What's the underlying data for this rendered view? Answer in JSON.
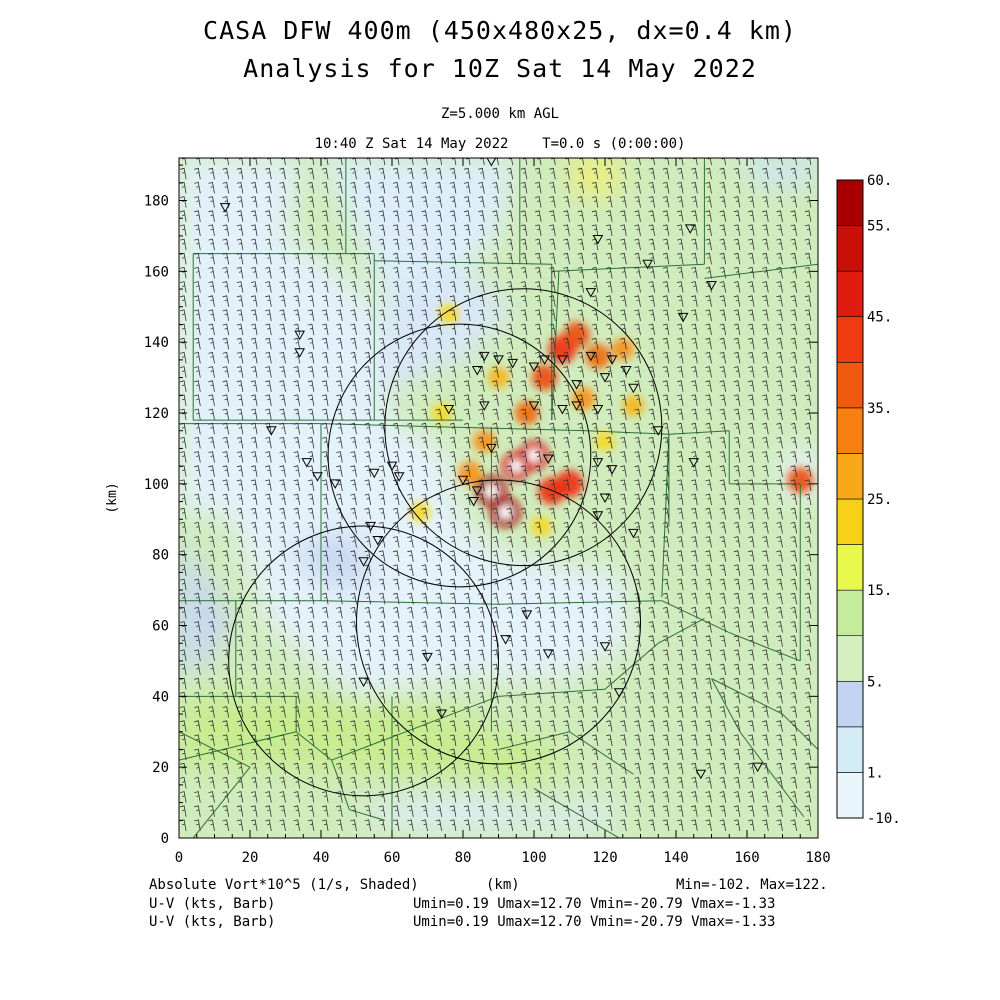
{
  "title": {
    "line1": "CASA DFW 400m (450x480x25, dx=0.4 km)",
    "line2": "Analysis for 10Z Sat 14 May 2022"
  },
  "subtitle": {
    "level": "Z=5.000 km AGL",
    "time": "10:40 Z Sat 14 May 2022    T=0.0 s (0:00:00)"
  },
  "footer": {
    "field_label": "Absolute Vort*10^5 (1/s, Shaded)",
    "xunit": "(km)",
    "minmax": "Min=-102. Max=122.",
    "vector1_label": "U-V (kts, Barb)",
    "vector2_label": "U-V (kts, Barb)",
    "vector1_stats": "Umin=0.19 Umax=12.70 Vmin=-20.79 Vmax=-1.33",
    "vector2_stats": "Umin=0.19 Umax=12.70 Vmin=-20.79 Vmax=-1.33"
  },
  "chart_data": {
    "type": "heatmap",
    "xlabel": "",
    "ylabel": "(km)",
    "xlim": [
      0,
      180
    ],
    "ylim": [
      0,
      192
    ],
    "xticks": [
      "0",
      "20",
      "40",
      "60",
      "80",
      "100",
      "120",
      "140",
      "160",
      "180"
    ],
    "yticks": [
      "0",
      "20",
      "40",
      "60",
      "80",
      "100",
      "120",
      "140",
      "160",
      "180"
    ],
    "colorbar": {
      "labels": [
        "60.",
        "55.",
        "45.",
        "35.",
        "25.",
        "15.",
        "5.",
        "1.",
        "-10."
      ],
      "colors": [
        "#e8f6fb",
        "#d4ecf8",
        "#c2d4f0",
        "#d4f0c0",
        "#c4ec9c",
        "#e8f84c",
        "#f8d018",
        "#f8a818",
        "#f88010",
        "#f05a10",
        "#f03a10",
        "#e01c10",
        "#c81008",
        "#a80000"
      ]
    },
    "radar_rings": [
      {
        "cx": 97,
        "cy": 116,
        "r": 39
      },
      {
        "cx": 79,
        "cy": 108,
        "r": 37
      },
      {
        "cx": 52,
        "cy": 50,
        "r": 38
      },
      {
        "cx": 90,
        "cy": 61,
        "r": 40
      }
    ],
    "reflectivity_cells": [
      {
        "x": 88,
        "y": 98,
        "v": 58
      },
      {
        "x": 92,
        "y": 92,
        "v": 56
      },
      {
        "x": 95,
        "y": 105,
        "v": 50
      },
      {
        "x": 100,
        "y": 108,
        "v": 52
      },
      {
        "x": 105,
        "y": 98,
        "v": 45
      },
      {
        "x": 110,
        "y": 100,
        "v": 46
      },
      {
        "x": 108,
        "y": 138,
        "v": 48
      },
      {
        "x": 112,
        "y": 142,
        "v": 42
      },
      {
        "x": 103,
        "y": 130,
        "v": 40
      },
      {
        "x": 118,
        "y": 136,
        "v": 38
      },
      {
        "x": 98,
        "y": 120,
        "v": 36
      },
      {
        "x": 82,
        "y": 103,
        "v": 34
      },
      {
        "x": 86,
        "y": 112,
        "v": 30
      },
      {
        "x": 125,
        "y": 138,
        "v": 30
      },
      {
        "x": 128,
        "y": 122,
        "v": 26
      },
      {
        "x": 114,
        "y": 124,
        "v": 32
      },
      {
        "x": 74,
        "y": 120,
        "v": 22
      },
      {
        "x": 76,
        "y": 148,
        "v": 22
      },
      {
        "x": 90,
        "y": 130,
        "v": 26
      },
      {
        "x": 175,
        "y": 101,
        "v": 40
      },
      {
        "x": 120,
        "y": 112,
        "v": 22
      },
      {
        "x": 68,
        "y": 92,
        "v": 22
      },
      {
        "x": 102,
        "y": 88,
        "v": 24
      }
    ],
    "stations": [
      [
        13,
        178
      ],
      [
        34,
        142
      ],
      [
        34,
        137
      ],
      [
        26,
        115
      ],
      [
        36,
        106
      ],
      [
        88,
        191
      ],
      [
        118,
        169
      ],
      [
        132,
        162
      ],
      [
        144,
        172
      ],
      [
        150,
        156
      ],
      [
        142,
        147
      ],
      [
        135,
        115
      ],
      [
        145,
        106
      ],
      [
        116,
        154
      ],
      [
        84,
        132
      ],
      [
        90,
        135
      ],
      [
        86,
        136
      ],
      [
        94,
        134
      ],
      [
        100,
        133
      ],
      [
        103,
        135
      ],
      [
        108,
        135
      ],
      [
        116,
        136
      ],
      [
        122,
        135
      ],
      [
        120,
        130
      ],
      [
        126,
        132
      ],
      [
        128,
        127
      ],
      [
        112,
        128
      ],
      [
        100,
        122
      ],
      [
        76,
        121
      ],
      [
        86,
        122
      ],
      [
        108,
        121
      ],
      [
        112,
        122
      ],
      [
        118,
        121
      ],
      [
        88,
        110
      ],
      [
        104,
        107
      ],
      [
        118,
        106
      ],
      [
        122,
        104
      ],
      [
        60,
        105
      ],
      [
        62,
        102
      ],
      [
        55,
        103
      ],
      [
        44,
        100
      ],
      [
        39,
        102
      ],
      [
        80,
        101
      ],
      [
        84,
        98
      ],
      [
        83,
        95
      ],
      [
        120,
        96
      ],
      [
        118,
        91
      ],
      [
        128,
        86
      ],
      [
        54,
        88
      ],
      [
        56,
        84
      ],
      [
        52,
        78
      ],
      [
        98,
        63
      ],
      [
        92,
        56
      ],
      [
        70,
        51
      ],
      [
        104,
        52
      ],
      [
        120,
        54
      ],
      [
        52,
        44
      ],
      [
        74,
        35
      ],
      [
        124,
        41
      ],
      [
        147,
        18
      ],
      [
        163,
        20
      ]
    ],
    "wind_barb_spacing_km": 4
  }
}
